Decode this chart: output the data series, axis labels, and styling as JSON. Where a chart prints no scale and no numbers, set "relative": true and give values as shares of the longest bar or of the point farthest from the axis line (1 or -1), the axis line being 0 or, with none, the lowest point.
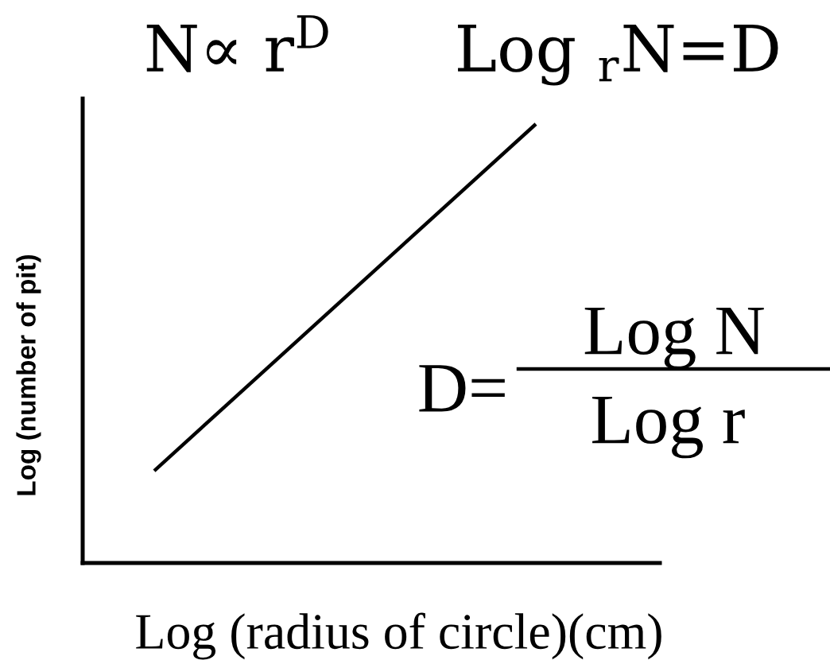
{
  "chart_data": {
    "type": "line",
    "relative": true,
    "title": "N∝ r$^{D}$      Log $_{r}$N=D",
    "xlabel": "Log (radius of circle)(cm)",
    "ylabel": "Log (number of pit)",
    "categories": [
      null,
      null
    ],
    "series": [
      {
        "color": "#000000",
        "values": [
          0.21,
          1
        ]
      }
    ],
    "line_style": "solid",
    "annotations": [
      "D=",
      "Log N",
      "Log r"
    ]
  }
}
